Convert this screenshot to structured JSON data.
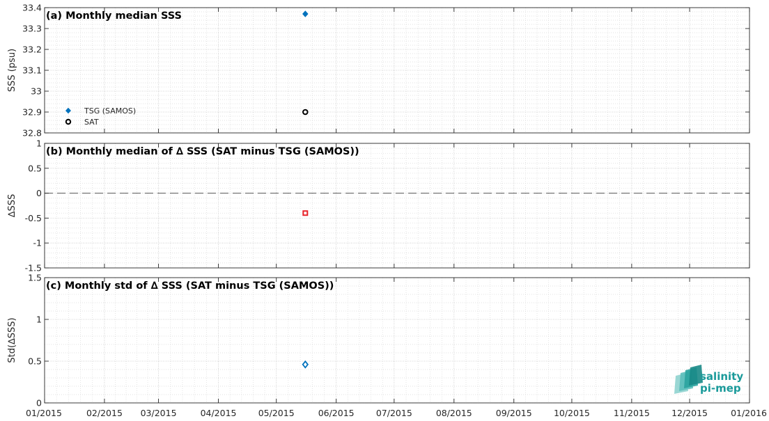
{
  "chart_data": [
    {
      "type": "scatter",
      "title": "(a) Monthly median SSS",
      "ylabel": "SSS (psu)",
      "ylim": [
        32.8,
        33.4
      ],
      "yticks": [
        "32.8",
        "32.9",
        "33",
        "33.1",
        "33.2",
        "33.3",
        "33.4"
      ],
      "grid": true,
      "legend_position": "bottom-left",
      "series": [
        {
          "name": "TSG (SAMOS)",
          "marker": "filled-diamond",
          "color": "#0072bd",
          "points": [
            {
              "x": "2015-05-16",
              "y": 33.37
            }
          ]
        },
        {
          "name": "SAT",
          "marker": "circle",
          "color": "#000000",
          "points": [
            {
              "x": "2015-05-16",
              "y": 32.9
            }
          ]
        }
      ]
    },
    {
      "type": "scatter",
      "title": "(b) Monthly median of ∆ SSS (SAT minus TSG (SAMOS))",
      "ylabel": "∆SSS",
      "ylim": [
        -1.5,
        1
      ],
      "yticks": [
        "-1.5",
        "-1",
        "-0.5",
        "0",
        "0.5",
        "1"
      ],
      "grid": true,
      "reference_line": 0,
      "series": [
        {
          "marker": "square",
          "color": "#e8232a",
          "points": [
            {
              "x": "2015-05-16",
              "y": -0.4
            }
          ]
        }
      ]
    },
    {
      "type": "scatter",
      "title": "(c) Monthly std of ∆ SSS (SAT minus TSG (SAMOS))",
      "ylabel": "Std(∆SSS)",
      "ylim": [
        0,
        1.5
      ],
      "yticks": [
        "0",
        "0.5",
        "1",
        "1.5"
      ],
      "grid": true,
      "series": [
        {
          "marker": "diamond",
          "color": "#0072bd",
          "points": [
            {
              "x": "2015-05-16",
              "y": 0.46
            }
          ]
        }
      ]
    }
  ],
  "x_axis": {
    "range": [
      "2015-01-01",
      "2016-01-01"
    ],
    "tick_labels": [
      "01/2015",
      "02/2015",
      "03/2015",
      "04/2015",
      "05/2015",
      "06/2015",
      "07/2015",
      "08/2015",
      "09/2015",
      "10/2015",
      "11/2015",
      "12/2015",
      "01/2016"
    ]
  },
  "logo": {
    "line1": "salinity",
    "line2": "pi-mep"
  }
}
